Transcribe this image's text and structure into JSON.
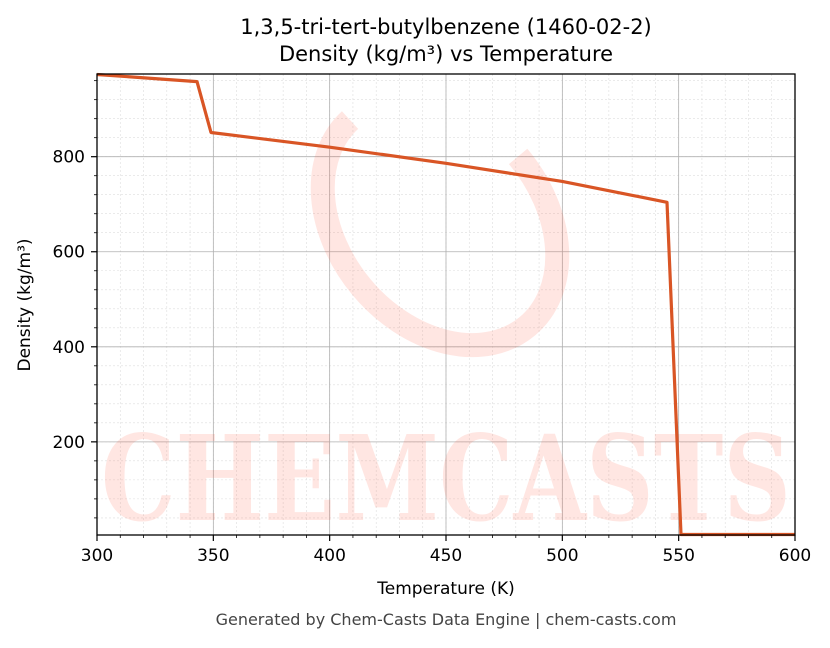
{
  "chart_data": {
    "type": "line",
    "title_line1": "1,3,5-tri-tert-butylbenzene (1460-02-2)",
    "title_line2": "Density (kg/m³) vs Temperature",
    "xlabel": "Temperature (K)",
    "ylabel": "Density (kg/m³)",
    "xlim": [
      300,
      600
    ],
    "ylim": [
      4,
      974
    ],
    "x_ticks": [
      300,
      350,
      400,
      450,
      500,
      550,
      600
    ],
    "y_ticks": [
      200,
      400,
      600,
      800
    ],
    "grid": true,
    "series": [
      {
        "color": "#d95525",
        "x": [
          300,
          343,
          349,
          400,
          450,
          500,
          545,
          551,
          600
        ],
        "y": [
          973,
          958,
          851,
          820,
          786,
          748,
          704,
          5,
          5
        ]
      }
    ]
  },
  "watermark": {
    "text": "CHEMCASTS",
    "color": "#ff5a3c"
  },
  "footer": "Generated by Chem-Casts Data Engine | chem-casts.com"
}
